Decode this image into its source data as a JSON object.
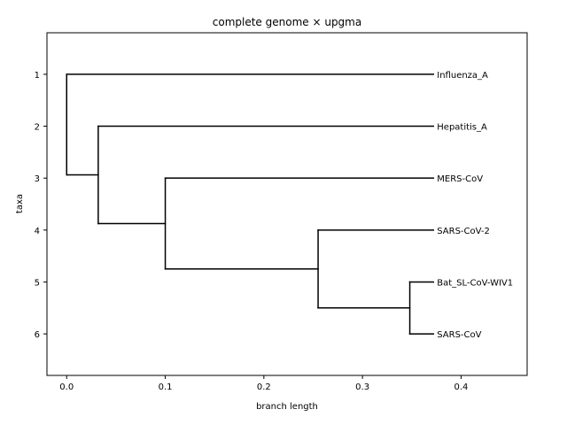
{
  "chart_data": {
    "type": "dendrogram",
    "title": "complete genome × upgma",
    "xlabel": "branch length",
    "ylabel": "taxa",
    "xlim": [
      -0.02,
      0.467
    ],
    "ylim": [
      6.8,
      0.2
    ],
    "xticks": [
      0.0,
      0.1,
      0.2,
      0.3,
      0.4
    ],
    "xtick_labels": [
      "0.0",
      "0.1",
      "0.2",
      "0.3",
      "0.4"
    ],
    "yticks": [
      1,
      2,
      3,
      4,
      5,
      6
    ],
    "ytick_labels": [
      "1",
      "2",
      "3",
      "4",
      "5",
      "6"
    ],
    "leaves": [
      {
        "name": "Influenza_A",
        "y": 1
      },
      {
        "name": "Hepatitis_A",
        "y": 2
      },
      {
        "name": "MERS-CoV",
        "y": 3
      },
      {
        "name": "SARS-CoV-2",
        "y": 4
      },
      {
        "name": "Bat_SL-CoV-WIV1",
        "y": 5
      },
      {
        "name": "SARS-CoV",
        "y": 6
      }
    ],
    "leaf_x": 0.372,
    "tree": {
      "x": 0.0,
      "children": [
        {
          "leaf": "Influenza_A"
        },
        {
          "x": 0.032,
          "children": [
            {
              "leaf": "Hepatitis_A"
            },
            {
              "x": 0.1,
              "children": [
                {
                  "leaf": "MERS-CoV"
                },
                {
                  "x": 0.255,
                  "children": [
                    {
                      "leaf": "SARS-CoV-2"
                    },
                    {
                      "x": 0.348,
                      "children": [
                        {
                          "leaf": "Bat_SL-CoV-WIV1"
                        },
                        {
                          "leaf": "SARS-CoV"
                        }
                      ]
                    }
                  ]
                }
              ]
            }
          ]
        }
      ]
    },
    "grid": false,
    "line_color": "#000000"
  }
}
